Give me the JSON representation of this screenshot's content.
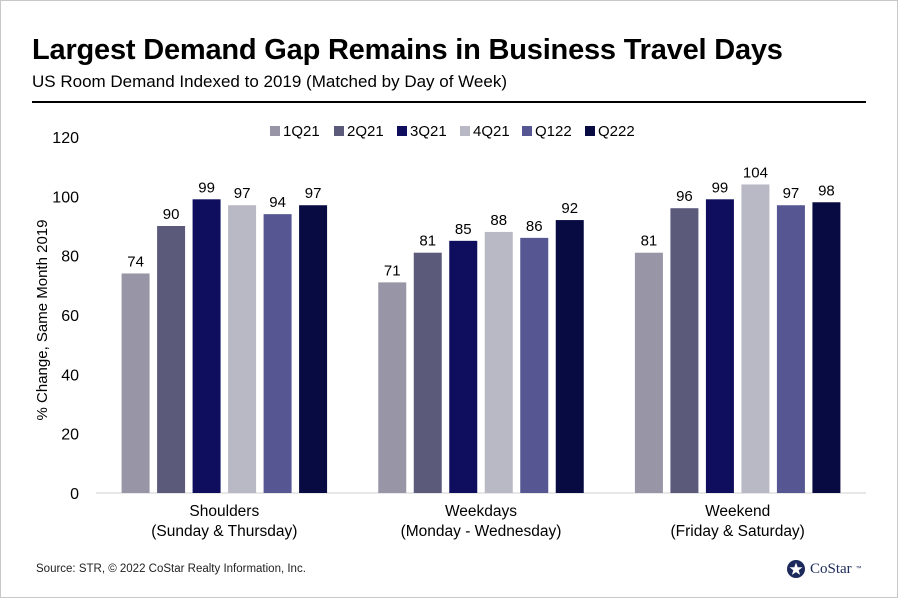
{
  "title": "Largest Demand Gap Remains in Business Travel Days",
  "subtitle": "US Room Demand Indexed to 2019 (Matched by Day of Week)",
  "source": "Source: STR, © 2022  CoStar Realty Information, Inc.",
  "logo": {
    "text": "CoStar",
    "tm": "™",
    "icon": "costar-star-icon"
  },
  "chart_data": {
    "type": "bar",
    "title": "",
    "ylabel": "% Change, Same Month 2019",
    "xlabel": "",
    "ylim": [
      0,
      120
    ],
    "yticks": [
      0,
      20,
      40,
      60,
      80,
      100,
      120
    ],
    "grid": false,
    "legend_position": "top",
    "categories": [
      [
        "Shoulders",
        "(Sunday & Thursday)"
      ],
      [
        "Weekdays",
        "(Monday - Wednesday)"
      ],
      [
        "Weekend",
        "(Friday & Saturday)"
      ]
    ],
    "series": [
      {
        "name": "1Q21",
        "color": "#9896a6",
        "values": [
          74,
          71,
          81
        ]
      },
      {
        "name": "2Q21",
        "color": "#5c5a7b",
        "values": [
          90,
          81,
          96
        ]
      },
      {
        "name": "3Q21",
        "color": "#0f0e5e",
        "values": [
          99,
          85,
          99
        ]
      },
      {
        "name": "4Q21",
        "color": "#b9b8c5",
        "values": [
          97,
          88,
          104
        ]
      },
      {
        "name": "Q122",
        "color": "#565792",
        "values": [
          94,
          86,
          97
        ]
      },
      {
        "name": "Q222",
        "color": "#080a42",
        "values": [
          97,
          92,
          98
        ]
      }
    ]
  }
}
